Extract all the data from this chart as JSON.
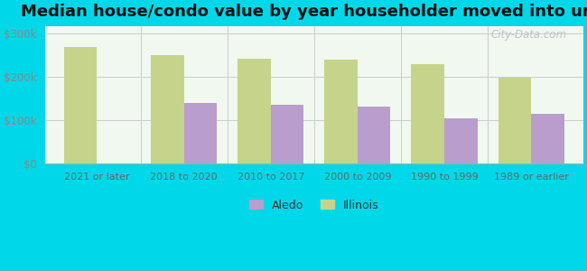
{
  "title": "Median house/condo value by year householder moved into unit",
  "categories": [
    "2021 or later",
    "2018 to 2020",
    "2010 to 2017",
    "2000 to 2009",
    "1990 to 1999",
    "1989 or earlier"
  ],
  "aledo_values": [
    null,
    140000,
    135000,
    130000,
    103000,
    115000
  ],
  "illinois_values": [
    268000,
    250000,
    240000,
    238000,
    228000,
    198000
  ],
  "aledo_color": "#b99dcc",
  "illinois_color": "#c5d48a",
  "background_outer": "#00d8ea",
  "background_inner_color": "#e8f5e8",
  "grid_color": "#cccccc",
  "ytick_color": "#888888",
  "xtick_color": "#666666",
  "yticks": [
    0,
    100000,
    200000,
    300000
  ],
  "ylim": [
    0,
    315000
  ],
  "bar_width": 0.38,
  "title_fontsize": 13,
  "title_color": "#111111",
  "legend_labels": [
    "Aledo",
    "Illinois"
  ],
  "watermark": "City-Data.com"
}
